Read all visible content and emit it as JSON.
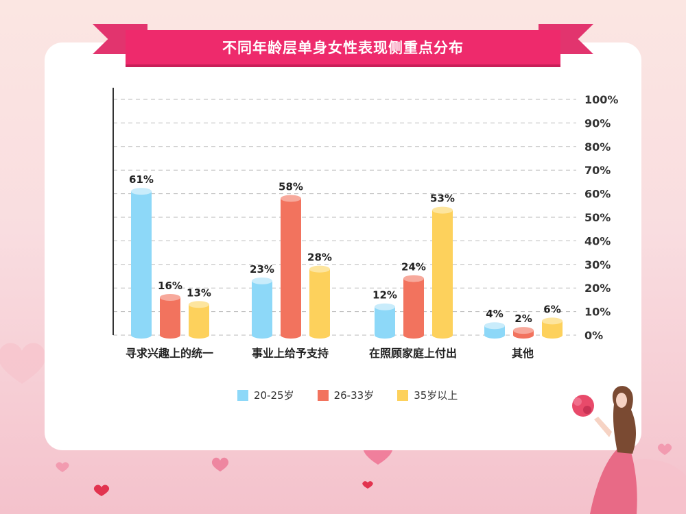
{
  "title": "不同年龄层单身女性表现侧重点分布",
  "colors": {
    "background_top": "#fbe6e2",
    "background_bottom": "#f4c2cc",
    "ribbon": "#ee2a6c",
    "series": [
      "#8dd8f8",
      "#f2735e",
      "#fdd15c"
    ],
    "series_top": [
      "#c9ecfb",
      "#f7a99c",
      "#fde59e"
    ]
  },
  "legend": [
    "20-25岁",
    "26-33岁",
    "35岁以上"
  ],
  "chart_data": {
    "type": "bar",
    "title": "不同年龄层单身女性表现侧重点分布",
    "categories": [
      "寻求兴趣上的统一",
      "事业上给予支持",
      "在照顾家庭上付出",
      "其他"
    ],
    "series": [
      {
        "name": "20-25岁",
        "values": [
          61,
          23,
          12,
          4
        ],
        "labels": [
          "61%",
          "23%",
          "12%",
          "4%"
        ]
      },
      {
        "name": "26-33岁",
        "values": [
          16,
          58,
          24,
          2
        ],
        "labels": [
          "16%",
          "58%",
          "24%",
          "2%"
        ]
      },
      {
        "name": "35岁以上",
        "values": [
          13,
          28,
          53,
          6
        ],
        "labels": [
          "13%",
          "28%",
          "53%",
          "6%"
        ]
      }
    ],
    "y_ticks": [
      "0%",
      "10%",
      "20%",
      "30%",
      "40%",
      "50%",
      "60%",
      "70%",
      "80%",
      "90%",
      "100%"
    ],
    "ylim": [
      0,
      100
    ],
    "y_axis_side": "right",
    "grid": true,
    "legend_position": "bottom"
  }
}
